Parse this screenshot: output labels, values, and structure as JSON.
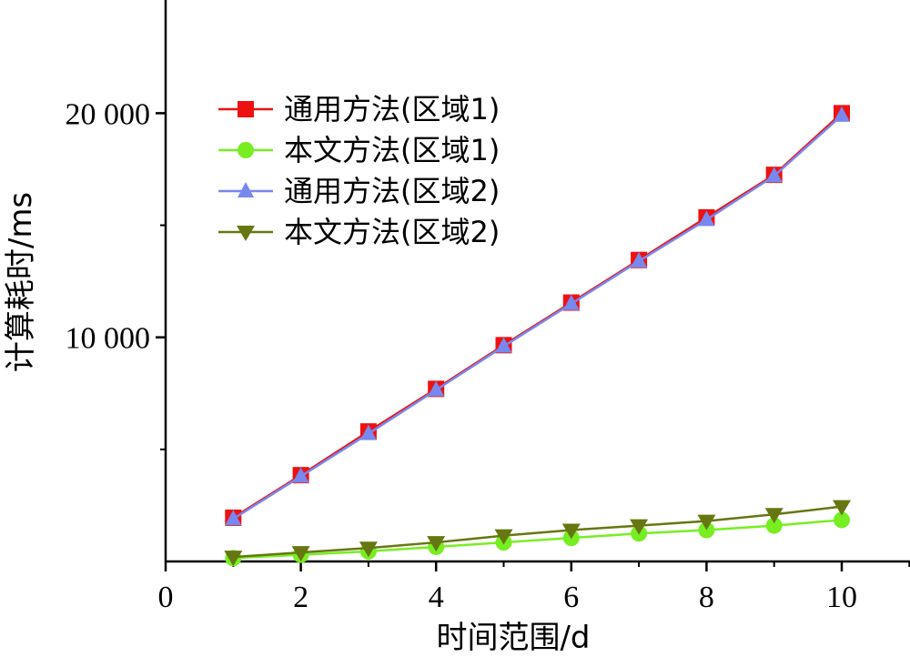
{
  "chart_data": {
    "type": "line",
    "title": "",
    "xlabel": "时间范围/d",
    "ylabel": "计算耗时/ms",
    "xlim": [
      0,
      11
    ],
    "ylim": [
      0,
      25000
    ],
    "x_ticks": [
      0,
      2,
      4,
      6,
      8,
      10
    ],
    "x_tick_labels": [
      "0",
      "2",
      "4",
      "6",
      "8",
      "10"
    ],
    "y_ticks": [
      10000,
      20000
    ],
    "y_tick_labels": [
      "10 000",
      "20 000"
    ],
    "grid": false,
    "legend_position": "top-left",
    "x": [
      1,
      2,
      3,
      4,
      5,
      6,
      7,
      8,
      9,
      10
    ],
    "series": [
      {
        "name": "通用方法(区域1)",
        "marker": "square",
        "color": "#ee1111",
        "values": [
          1950,
          3850,
          5800,
          7700,
          9650,
          11550,
          13450,
          15350,
          17250,
          20000
        ]
      },
      {
        "name": "本文方法(区域1)",
        "marker": "circle",
        "color": "#77ee22",
        "values": [
          150,
          300,
          450,
          650,
          850,
          1050,
          1250,
          1400,
          1600,
          1850
        ]
      },
      {
        "name": "通用方法(区域2)",
        "marker": "triangle-up",
        "color": "#7788ee",
        "values": [
          1900,
          3800,
          5700,
          7650,
          9600,
          11500,
          13400,
          15250,
          17200,
          19900
        ]
      },
      {
        "name": "本文方法(区域2)",
        "marker": "triangle-down",
        "color": "#667711",
        "values": [
          200,
          400,
          600,
          850,
          1150,
          1400,
          1600,
          1800,
          2100,
          2450
        ]
      }
    ]
  }
}
